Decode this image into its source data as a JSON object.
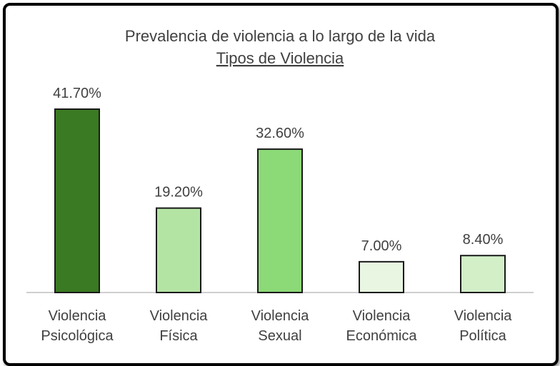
{
  "chart_data": {
    "type": "bar",
    "title": "Prevalencia de violencia a lo largo de la vida",
    "subtitle": "Tipos de Violencia",
    "categories": [
      [
        "Violencia",
        "Psicológica"
      ],
      [
        "Violencia",
        "Física"
      ],
      [
        "Violencia",
        "Sexual"
      ],
      [
        "Violencia",
        "Económica"
      ],
      [
        "Violencia",
        "Política"
      ]
    ],
    "values": [
      41.7,
      19.2,
      32.6,
      7.0,
      8.4
    ],
    "data_labels": [
      "41.70%",
      "19.20%",
      "32.60%",
      "7.00%",
      "8.40%"
    ],
    "colors": [
      "#3a7a22",
      "#b4e4a4",
      "#8cd977",
      "#e8f6e2",
      "#d2efc8"
    ],
    "bar_border_color": "#1a1a1a",
    "axis_color": "#bfbfbf",
    "text_color": "#404040",
    "ylim": [
      0,
      41.7
    ],
    "grid": false,
    "legend": "none",
    "xlabel": "",
    "ylabel": ""
  }
}
